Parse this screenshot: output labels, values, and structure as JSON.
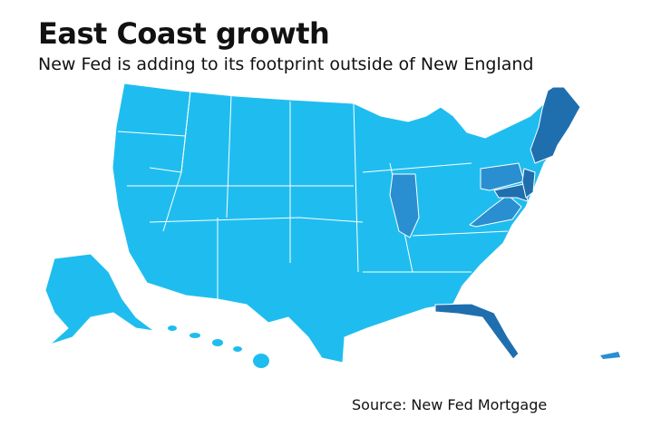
{
  "header": {
    "title": "East Coast growth",
    "subtitle": "New Fed is adding to its footprint outside of New England"
  },
  "source": "Source: New Fed Mortgage"
}
